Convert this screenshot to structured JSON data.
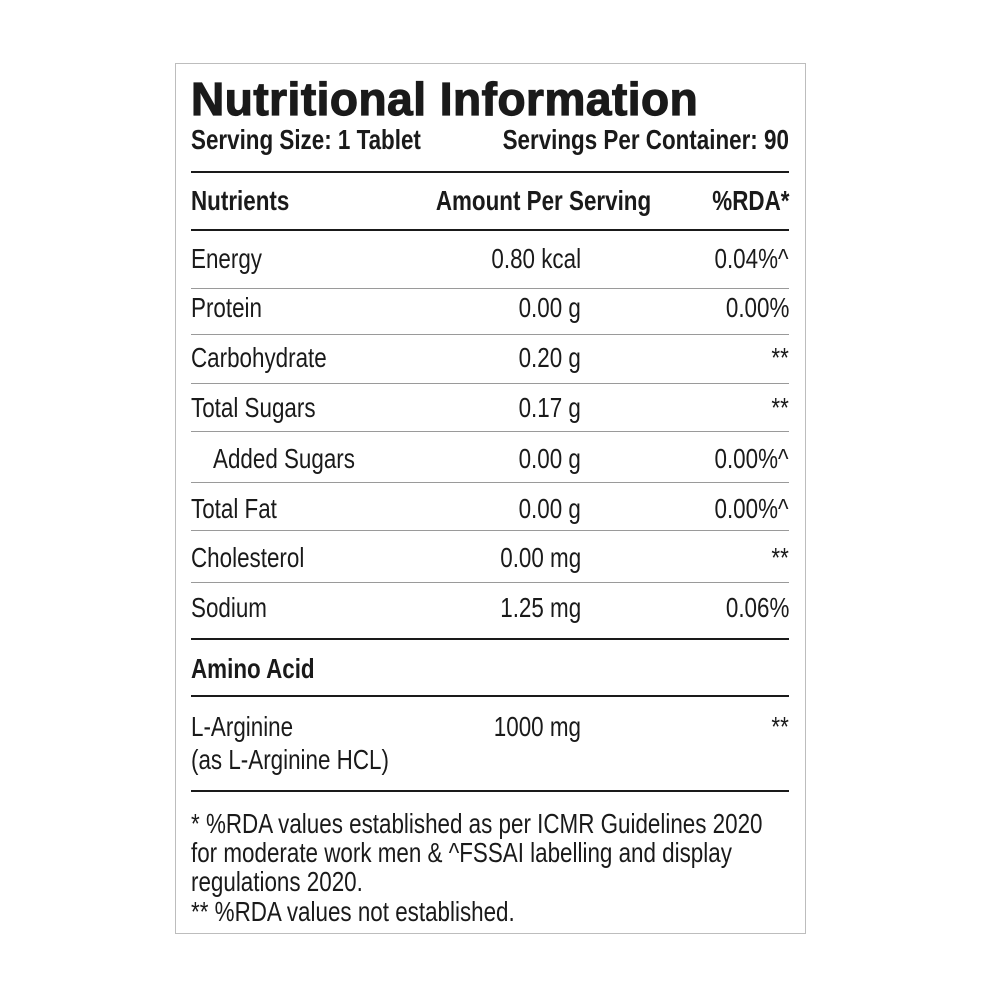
{
  "title": "Nutritional Information",
  "serving_size": "Serving Size: 1 Tablet",
  "servings_per_container": "Servings Per Container: 90",
  "columns": [
    "Nutrients",
    "Amount Per Serving",
    "%RDA*"
  ],
  "rows": [
    {
      "name": "Energy",
      "amount": "0.80 kcal",
      "rda": "0.04%^"
    },
    {
      "name": "Protein",
      "amount": "0.00 g",
      "rda": "0.00%"
    },
    {
      "name": "Carbohydrate",
      "amount": "0.20 g",
      "rda": "**"
    },
    {
      "name": "Total Sugars",
      "amount": "0.17 g",
      "rda": "**"
    },
    {
      "name": "Added Sugars",
      "amount": "0.00 g",
      "rda": "0.00%^"
    },
    {
      "name": "Total Fat",
      "amount": "0.00 g",
      "rda": "0.00%^"
    },
    {
      "name": "Cholesterol",
      "amount": "0.00 mg",
      "rda": "**"
    },
    {
      "name": "Sodium",
      "amount": "1.25 mg",
      "rda": "0.06%"
    }
  ],
  "amino_section": "Amino Acid",
  "amino_rows": [
    {
      "name": "L-Arginine",
      "name_sub": "(as L-Arginine HCL)",
      "amount": "1000 mg",
      "rda": "**"
    }
  ],
  "footnotes": [
    "* %RDA values established as per ICMR Guidelines 2020",
    "for moderate work men & ^FSSAI labelling and display",
    "regulations 2020.",
    "** %RDA values not established."
  ]
}
